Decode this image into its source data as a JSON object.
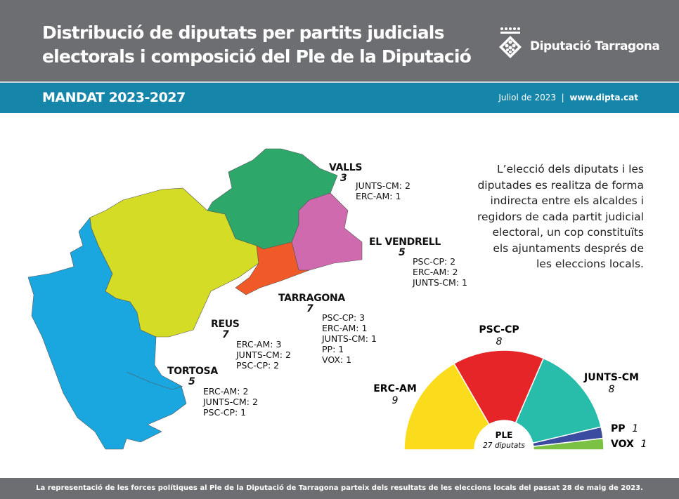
{
  "header": {
    "title_line1": "Distribució de diputats per partits judicials",
    "title_line2": "electorals i composició del Ple de la Diputació",
    "logo": "Diputació Tarragona"
  },
  "band": {
    "mandat": "MANDAT 2023-2027",
    "date": "Juliol de 2023",
    "separator": "|",
    "url": "www.dipta.cat"
  },
  "description": "L’elecció dels diputats i les diputades es realitza de forma indirecta entre els alcaldes i regidors de cada partit judicial electoral, un cop constituïts els ajuntaments després de les eleccions locals.",
  "districts": [
    {
      "name": "VALLS",
      "seats": "3",
      "color": "#2ea86a",
      "parties": [
        "JUNTS-CM: 2",
        "ERC-AM: 1"
      ]
    },
    {
      "name": "EL VENDRELL",
      "seats": "5",
      "color": "#d06aae",
      "parties": [
        "PSC-CP: 2",
        "ERC-AM: 2",
        "JUNTS-CM: 1"
      ]
    },
    {
      "name": "TARRAGONA",
      "seats": "7",
      "color": "#f05a28",
      "parties": [
        "PSC-CP: 3",
        "ERC-AM: 1",
        "JUNTS-CM: 1",
        "PP: 1",
        "VOX: 1"
      ]
    },
    {
      "name": "REUS",
      "seats": "7",
      "color": "#d4dc26",
      "parties": [
        "ERC-AM: 3",
        "JUNTS-CM: 2",
        "PSC-CP: 2"
      ]
    },
    {
      "name": "TORTOSA",
      "seats": "5",
      "color": "#1aa7e0",
      "parties": [
        "ERC-AM: 2",
        "JUNTS-CM: 2",
        "PSC-CP: 1"
      ]
    }
  ],
  "chart_data": {
    "type": "pie",
    "variant": "hemicycle",
    "center_label": "PLE",
    "center_sublabel": "27 diputats",
    "series": [
      {
        "name": "ERC-AM",
        "value": 9,
        "color": "#fbdc1c"
      },
      {
        "name": "PSC-CP",
        "value": 8,
        "color": "#e52528"
      },
      {
        "name": "JUNTS-CM",
        "value": 8,
        "color": "#28bcaa"
      },
      {
        "name": "PP",
        "value": 1,
        "color": "#3a4ba0"
      },
      {
        "name": "VOX",
        "value": 1,
        "color": "#7bc143"
      }
    ]
  },
  "footer": "La representació de les forces polítiques al Ple de la Diputació de Tarragona parteix dels resultats de les eleccions locals del passat 28 de maig de 2023."
}
